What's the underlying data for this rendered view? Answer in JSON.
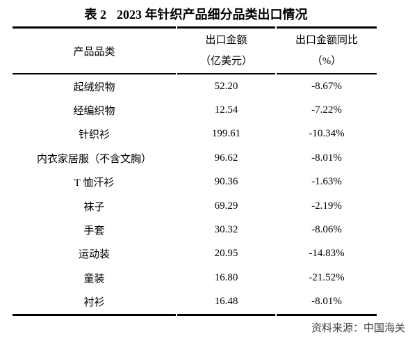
{
  "table": {
    "title": {
      "label": "表 2",
      "text": "2023 年针织产品细分品类出口情况"
    },
    "columns": {
      "category": "产品品类",
      "value_line1": "出口金额",
      "value_line2": "（亿美元）",
      "yoy_line1": "出口金额同比",
      "yoy_line2": "（%）"
    },
    "rows": [
      {
        "category": "起绒织物",
        "value": "52.20",
        "yoy": "-8.67%"
      },
      {
        "category": "经编织物",
        "value": "12.54",
        "yoy": "-7.22%"
      },
      {
        "category": "针织衫",
        "value": "199.61",
        "yoy": "-10.34%"
      },
      {
        "category": "内衣家居服（不含文胸）",
        "value": "96.62",
        "yoy": "-8.01%"
      },
      {
        "category": "T 恤汗衫",
        "value": "90.36",
        "yoy": "-1.63%"
      },
      {
        "category": "袜子",
        "value": "69.29",
        "yoy": "-2.19%"
      },
      {
        "category": "手套",
        "value": "30.32",
        "yoy": "-8.06%"
      },
      {
        "category": "运动装",
        "value": "20.95",
        "yoy": "-14.83%"
      },
      {
        "category": "童装",
        "value": "16.80",
        "yoy": "-21.52%"
      },
      {
        "category": "衬衫",
        "value": "16.48",
        "yoy": "-8.01%"
      }
    ]
  },
  "footer": {
    "source": "资料来源：中国海关"
  },
  "colors": {
    "rule": "#000000",
    "text": "#000000",
    "source_text": "#404040",
    "background": "#ffffff"
  }
}
